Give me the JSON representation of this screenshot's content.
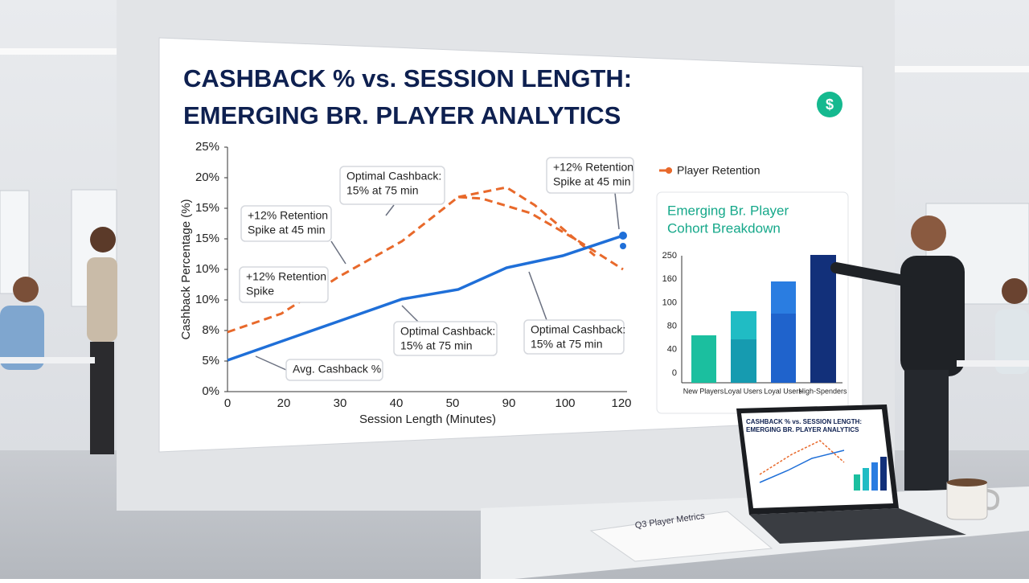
{
  "screen": {
    "title": [
      "CASHBACK % vs. SESSION LENGTH:",
      "EMERGING BR. PLAYER ANALYTICS"
    ],
    "y_axis_title": "Cashback Percentage (%)",
    "y_tick_labels": [
      "25%",
      "20%",
      "15%",
      "15%",
      "10%",
      "10%",
      "8%",
      "5%",
      "0%"
    ],
    "x_tick_labels": [
      0,
      20,
      30,
      40,
      50,
      90,
      100,
      120
    ],
    "x_axis_title": "Session Length (Minutes)",
    "legend": "Player Retention",
    "annotations": [
      {
        "lines": [
          "Optimal Cashback:",
          "15% at 75 min"
        ]
      },
      {
        "lines": [
          "+12% Retention",
          "Spike at 45 min"
        ]
      },
      {
        "lines": [
          "+12% Retention",
          "Spike at 45 min"
        ]
      },
      {
        "lines": [
          "+12% Retention",
          "Spike"
        ]
      },
      {
        "lines": [
          "Optimal Cashback:",
          "15% at 75 min"
        ]
      },
      {
        "lines": [
          "Optimal Cashback:",
          "15% at 75 min"
        ]
      },
      {
        "lines": [
          "Avg. Cashback %"
        ]
      }
    ],
    "inset": {
      "title": [
        "Emerging Br. Player",
        "Cohort Breakdown"
      ],
      "y_tick_labels": [
        250,
        160,
        100,
        80,
        40,
        0
      ],
      "categories": [
        "New Players",
        "Loyal Users",
        "Loyal Users",
        "High-Spenders"
      ]
    }
  },
  "paper": {
    "title": "Q3 Player Metrics"
  }
}
